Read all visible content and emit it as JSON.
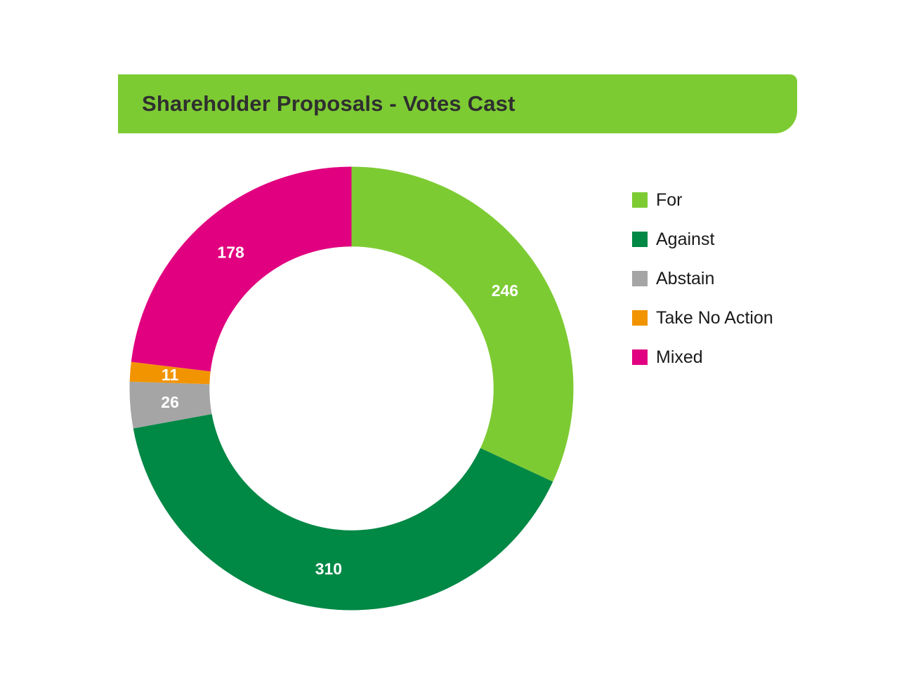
{
  "banner": {
    "title": "Shareholder Proposals - Votes Cast",
    "background": "#7dcb33"
  },
  "chart_data": {
    "type": "pie",
    "variant": "donut",
    "title": "Shareholder Proposals - Votes Cast",
    "direction": "clockwise",
    "start_angle_deg": 0,
    "inner_radius_ratio": 0.64,
    "legend_position": "right",
    "total": 771,
    "data_label_color": "#ffffff",
    "series": [
      {
        "label": "For",
        "value": 246,
        "color": "#7dcb33"
      },
      {
        "label": "Against",
        "value": 310,
        "color": "#008845"
      },
      {
        "label": "Abstain",
        "value": 26,
        "color": "#a5a5a5"
      },
      {
        "label": "Take No Action",
        "value": 11,
        "color": "#f29400"
      },
      {
        "label": "Mixed",
        "value": 178,
        "color": "#e1007f"
      }
    ]
  }
}
